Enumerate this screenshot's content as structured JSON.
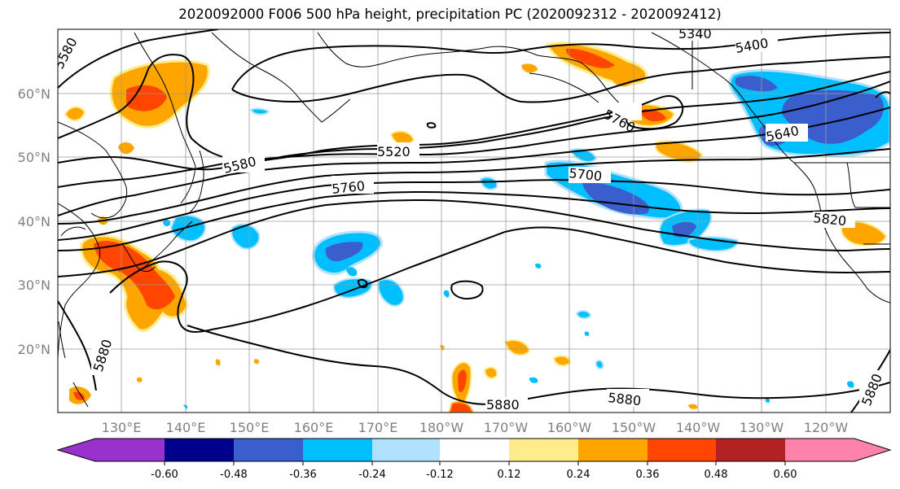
{
  "title": "2020092000 F006 500 hPa height, precipitation PC (2020092312 - 2020092412)",
  "lat_labels": [
    "60°N",
    "50°N",
    "40°N",
    "30°N",
    "20°N"
  ],
  "lon_labels": [
    "130°E",
    "140°E",
    "150°E",
    "160°E",
    "170°E",
    "180°W",
    "170°W",
    "160°W",
    "150°W",
    "140°W",
    "130°W",
    "120°W"
  ],
  "contour_labels": [
    "5580",
    "5340",
    "5400",
    "5520",
    "5580",
    "5760",
    "5700",
    "5640",
    "5820",
    "5880",
    "5880",
    "5880",
    "5880",
    "5760"
  ],
  "colorbar": {
    "tick_labels": [
      "-0.60",
      "-0.48",
      "-0.36",
      "-0.24",
      "-0.12",
      "0.12",
      "0.24",
      "0.36",
      "0.48",
      "0.60"
    ],
    "colors": [
      "#9932cc",
      "#00008b",
      "#3a5fcd",
      "#00bfff",
      "#b0e2ff",
      "#ffffff",
      "#ffec8b",
      "#ffa500",
      "#ff4500",
      "#b22222",
      "#ff82ab"
    ]
  }
}
